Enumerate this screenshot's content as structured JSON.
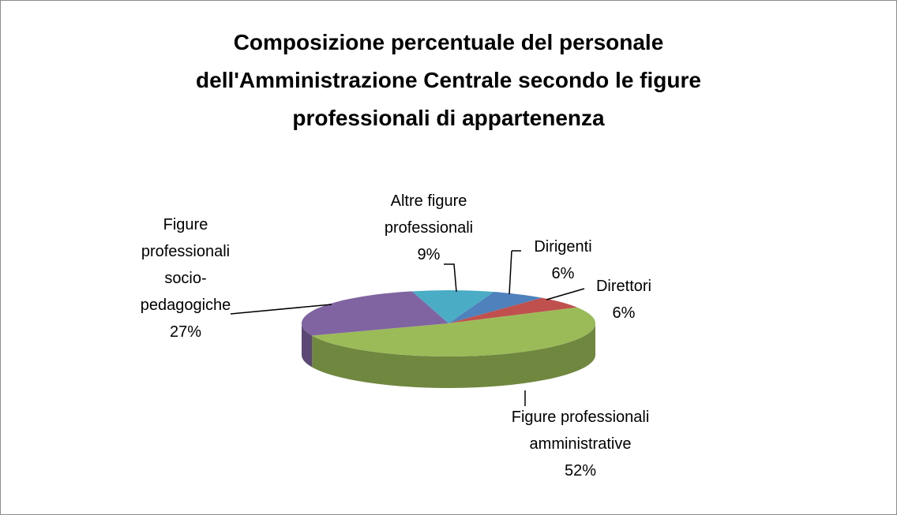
{
  "chart_data": {
    "type": "pie3d",
    "title": "Composizione percentuale del personale dell'Amministrazione Centrale secondo le figure professionali di appartenenza",
    "categories": [
      "Dirigenti",
      "Direttori",
      "Figure professionali amministrative",
      "Figure professionali socio-pedagogiche",
      "Altre figure professionali"
    ],
    "values": [
      6,
      6,
      52,
      27,
      9
    ],
    "value_labels": [
      "6%",
      "6%",
      "52%",
      "27%",
      "9%"
    ],
    "colors": [
      "#4f81bd",
      "#c0504d",
      "#9bbb59",
      "#8064a2",
      "#4bacc6"
    ]
  }
}
